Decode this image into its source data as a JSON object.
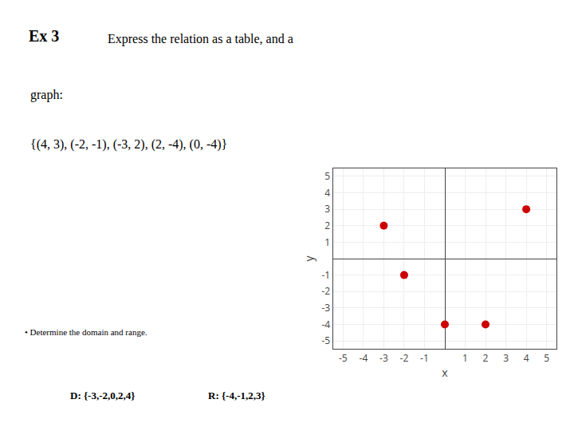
{
  "chart_data": {
    "type": "scatter",
    "title": "Ex 3",
    "annotations": [
      "Express the relation as a table, and a",
      "graph:",
      "{(4, 3), (-2, -1), (-3, 2), (2, -4), (0, -4)}",
      "• Determine the domain and range.",
      "D: {-3,-2,0,2,4}",
      "R: {-4,-1,2,3}"
    ],
    "x": [
      4,
      -2,
      -3,
      2,
      0
    ],
    "values": [
      3,
      -1,
      2,
      -4,
      -4
    ],
    "color": "#cc0000",
    "xlabel": "x",
    "ylabel": "y",
    "xlim": [
      -5.5,
      5.5
    ],
    "ylim": [
      -5.5,
      5.5
    ],
    "xticks": [
      -5,
      -4,
      -3,
      -2,
      -1,
      1,
      2,
      3,
      4,
      5
    ],
    "yticks": [
      -5,
      -4,
      -3,
      -2,
      -1,
      1,
      2,
      3,
      4,
      5
    ],
    "grid": true
  }
}
